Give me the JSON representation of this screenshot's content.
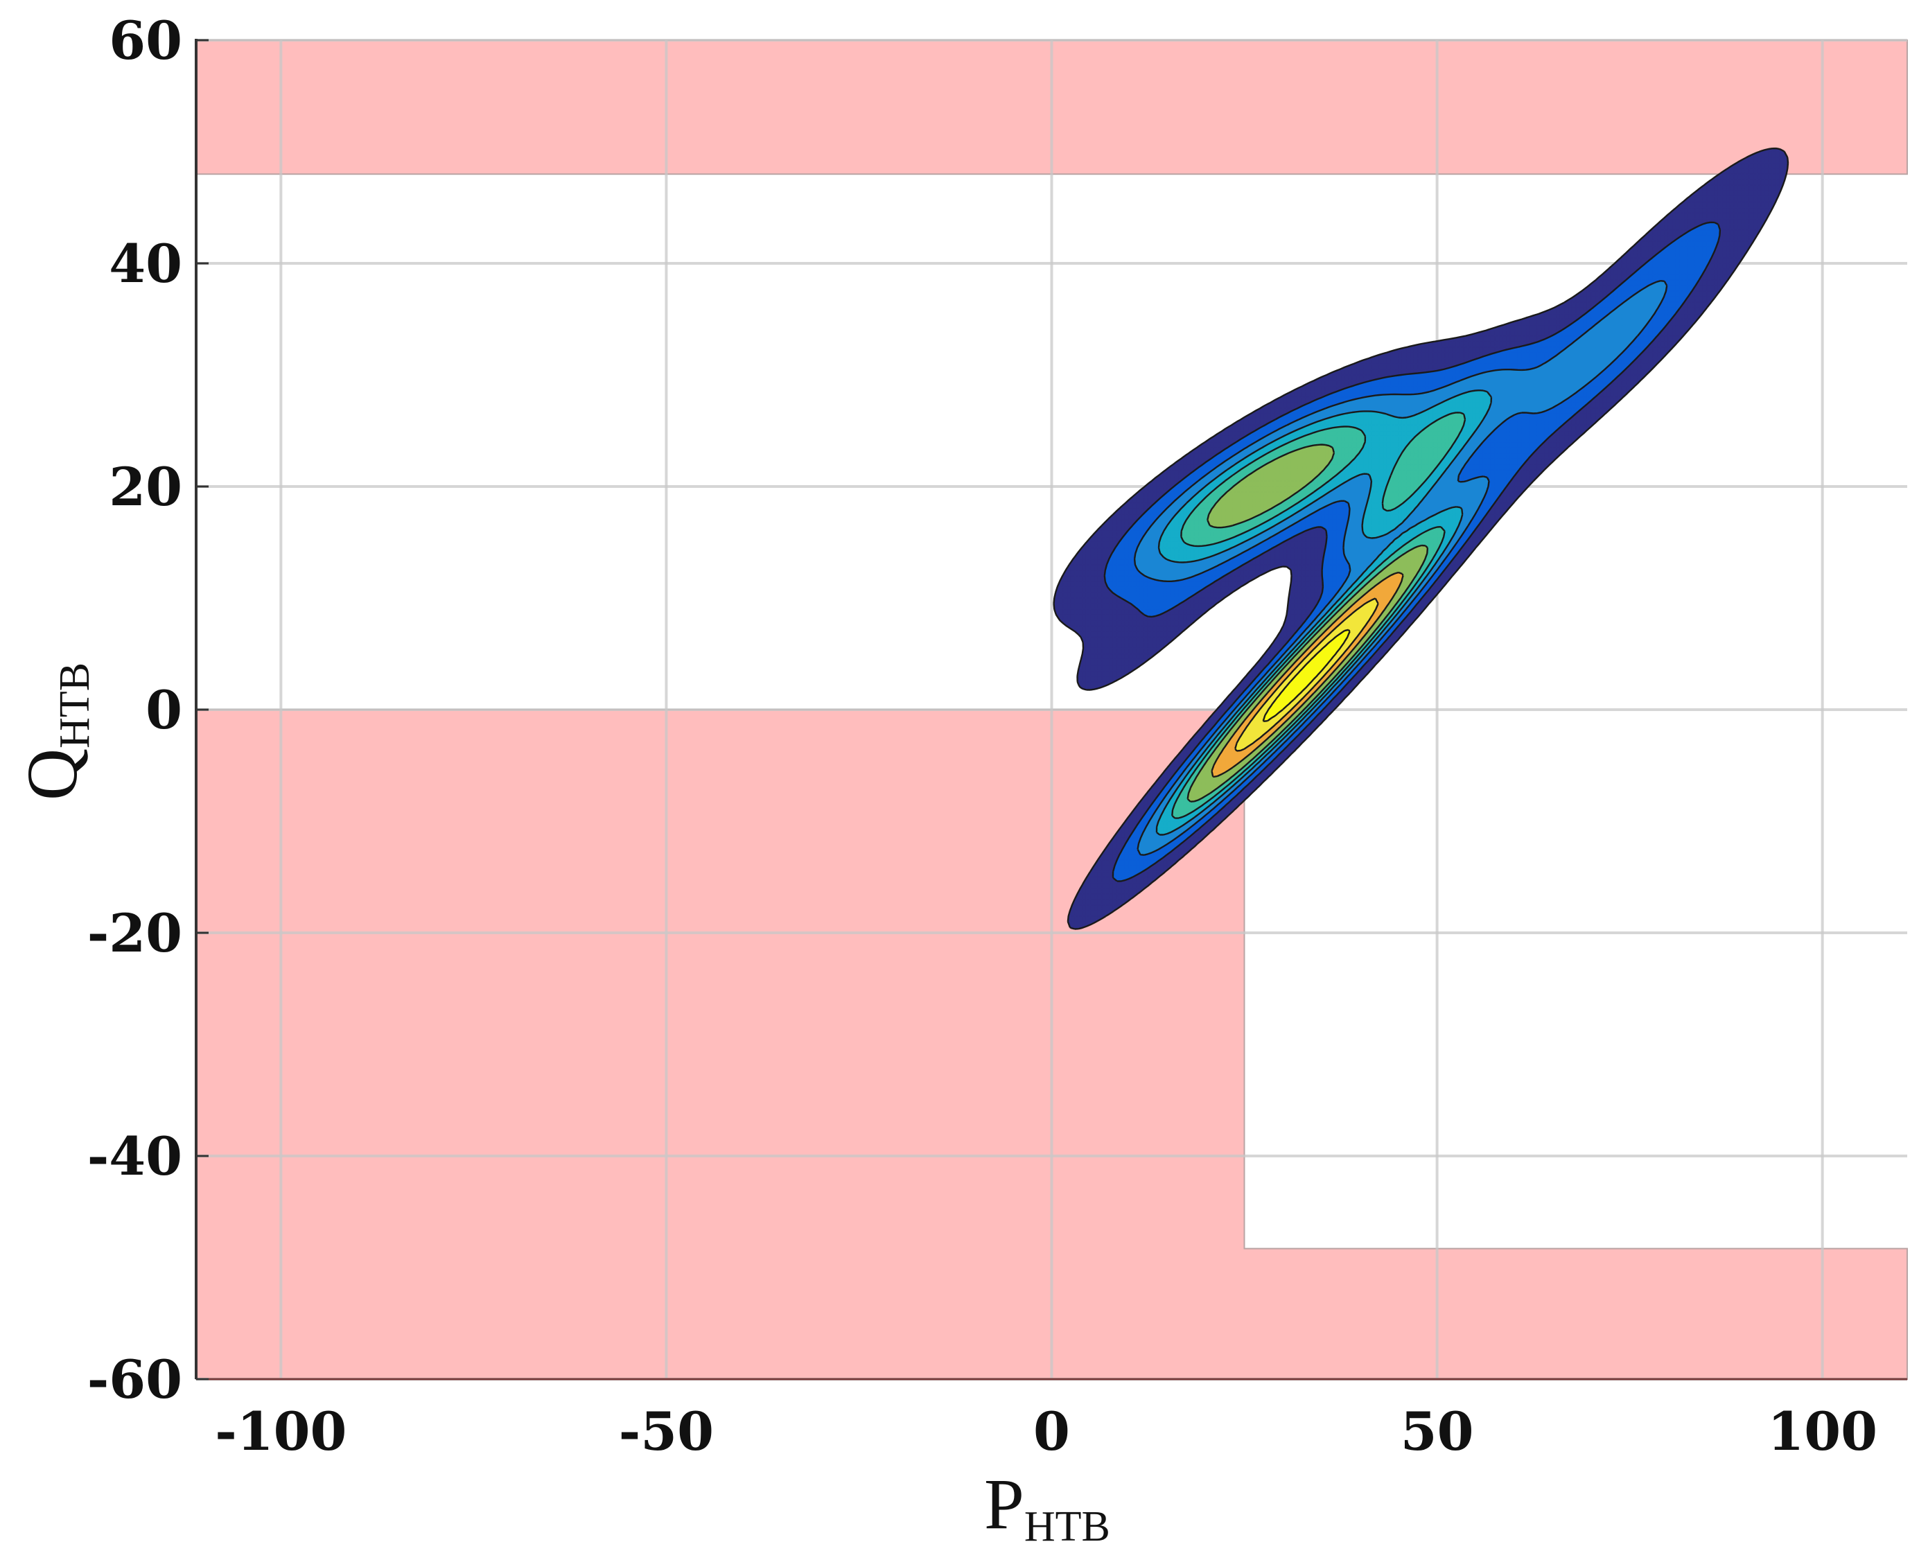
{
  "chart_data": {
    "type": "contour",
    "xlabel": "P",
    "xlabel_sub": "HTB",
    "ylabel": "Q",
    "ylabel_sub": "HTB",
    "xlim": [
      -111,
      111
    ],
    "ylim": [
      -60,
      60
    ],
    "xticks": [
      -100,
      -50,
      0,
      50,
      100
    ],
    "yticks": [
      -60,
      -40,
      -20,
      0,
      20,
      40,
      60
    ],
    "xtick_labels": [
      "-100",
      "-50",
      "0",
      "50",
      "100"
    ],
    "ytick_labels": [
      "-60",
      "-40",
      "-20",
      "0",
      "20",
      "40",
      "60"
    ],
    "grid": true,
    "forbidden_regions": [
      {
        "name": "upper-band",
        "polygon": [
          [
            -111,
            48
          ],
          [
            111,
            48
          ],
          [
            111,
            60
          ],
          [
            -111,
            60
          ]
        ]
      },
      {
        "name": "lower-left-block",
        "polygon": [
          [
            -111,
            -60
          ],
          [
            111,
            -60
          ],
          [
            111,
            -48.3
          ],
          [
            25,
            -48.3
          ],
          [
            25,
            0
          ],
          [
            -111,
            0
          ]
        ]
      }
    ],
    "forbidden_color": "#ffbdbd",
    "density_peaks": [
      {
        "x": 33,
        "y": 3,
        "value": 1.0
      },
      {
        "x": 28,
        "y": 20,
        "value": 0.55
      },
      {
        "x": 75,
        "y": 35,
        "value": 0.2
      }
    ],
    "contour_colors": [
      "#2e2f87",
      "#0a5fd8",
      "#1a86d4",
      "#15adc9",
      "#39bfa0",
      "#8dbd5a",
      "#f1a83a",
      "#f2e63a",
      "#f8fa10"
    ]
  }
}
